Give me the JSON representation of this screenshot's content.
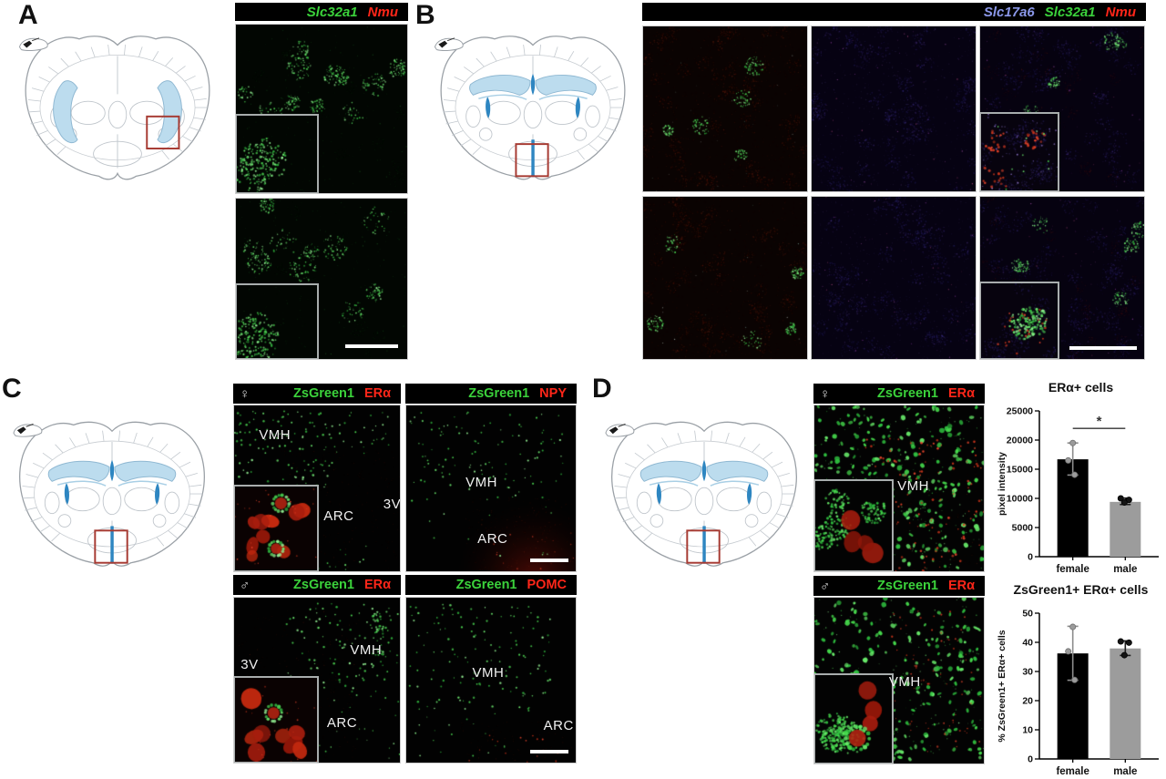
{
  "figure": {
    "panel_a": {
      "label": "A",
      "legend": {
        "slc32a1": "Slc32a1",
        "nmu": "Nmu"
      }
    },
    "panel_b": {
      "label": "B",
      "legend": {
        "slc17a6": "Slc17a6",
        "slc32a1": "Slc32a1",
        "nmu": "Nmu"
      }
    },
    "panel_c": {
      "label": "C",
      "headers": [
        {
          "sex_symbol": "♀",
          "green": "ZsGreen1",
          "red": "ERα"
        },
        {
          "sex_symbol": "",
          "green": "ZsGreen1",
          "red": "NPY"
        },
        {
          "sex_symbol": "♂",
          "green": "ZsGreen1",
          "red": "ERα"
        },
        {
          "sex_symbol": "",
          "green": "ZsGreen1",
          "red": "POMC"
        }
      ],
      "images": [
        {
          "labels": [
            "VMH",
            "ARC",
            "3V"
          ]
        },
        {
          "labels": [
            "VMH",
            "ARC"
          ]
        },
        {
          "labels": [
            "3V",
            "VMH",
            "ARC"
          ]
        },
        {
          "labels": [
            "VMH",
            "ARC"
          ]
        }
      ]
    },
    "panel_d": {
      "label": "D",
      "headers": [
        {
          "sex_symbol": "♀",
          "green": "ZsGreen1",
          "red": "ERα"
        },
        {
          "sex_symbol": "♂",
          "green": "ZsGreen1",
          "red": "ERα"
        }
      ],
      "images": [
        {
          "labels": [
            "VMH"
          ]
        },
        {
          "labels": [
            "VMH"
          ]
        }
      ]
    },
    "colors": {
      "green_label": "#3bd23b",
      "red_label": "#ff2619",
      "blue_label": "#8a97e8",
      "female_bar": "#000000",
      "male_bar": "#9c9c9c",
      "ventricle_blue": "#2e86c1",
      "hippocampus_blue": "#bcdcee",
      "target_box_red": "#a63a32"
    }
  },
  "chart_data": [
    {
      "type": "bar",
      "title": "ERα+ cells",
      "categories": [
        "female",
        "male"
      ],
      "values": [
        16700,
        9400
      ],
      "error_bars": [
        {
          "top": 19500,
          "bottom": 14000
        },
        {
          "top": 10050,
          "bottom": 8950
        }
      ],
      "points": [
        [
          19500,
          16500,
          14050
        ],
        [
          10000,
          9750,
          9300
        ]
      ],
      "xlabel": "",
      "ylabel": "pixel intensity",
      "ylim": [
        0,
        25000
      ],
      "yticks": [
        0,
        5000,
        10000,
        15000,
        20000,
        25000
      ],
      "bar_colors": [
        "#000000",
        "#9c9c9c"
      ],
      "significance": {
        "label": "*",
        "y": 22000,
        "between": [
          "female",
          "male"
        ]
      },
      "legend_position": "none",
      "grid": false
    },
    {
      "type": "bar",
      "title": "ZsGreen1+ ERα+ cells",
      "categories": [
        "female",
        "male"
      ],
      "values": [
        36.2,
        37.9
      ],
      "error_bars": [
        {
          "top": 45.5,
          "bottom": 27
        },
        {
          "top": 40.5,
          "bottom": 35.5
        }
      ],
      "points": [
        [
          45.3,
          36.9,
          27.1
        ],
        [
          40.3,
          39.9,
          35.6
        ]
      ],
      "xlabel": "",
      "ylabel": "% ZsGreen1+ ERα+ cells",
      "ylim": [
        0,
        50
      ],
      "yticks": [
        0,
        10,
        20,
        30,
        40,
        50
      ],
      "bar_colors": [
        "#000000",
        "#9c9c9c"
      ],
      "significance": null,
      "legend_position": "none",
      "grid": false
    }
  ]
}
